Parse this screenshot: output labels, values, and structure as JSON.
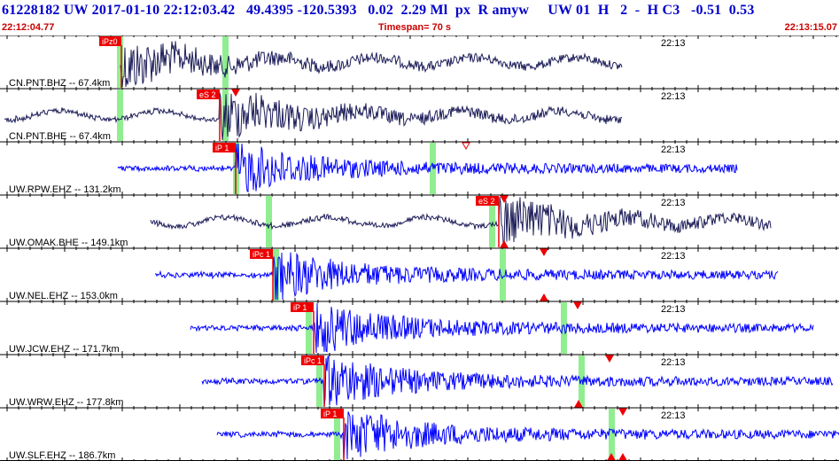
{
  "header": {
    "title": "61228182 UW 2017-01-10 22:12:03.42   49.4395 -120.5393   0.02  2.29 Ml  px  R amyw     UW 01  H   2  -  H C3   -0.51  0.53",
    "start_time": "22:12:04.77",
    "timespan": "Timespan=  70 s",
    "end_time": "22:13:15.07"
  },
  "colors": {
    "trace_dark": "#1e1e5a",
    "trace_blue": "#0000ff",
    "pick_box": "#ee0000",
    "pick_marker": "#ee0000",
    "theoretical_band": "#90ee90",
    "tick": "#000000"
  },
  "traces": [
    {
      "label": "CN.PNT.BHZ -- 67.4km",
      "time_label": "22:13",
      "color": "dark",
      "start": 136,
      "end": 702,
      "onset": 137,
      "bands": [
        135,
        254
      ],
      "picks": [
        {
          "text": "iPz0",
          "x": 137,
          "box_left": 112
        }
      ],
      "markers": []
    },
    {
      "label": "CN.PNT.BHE -- 67.4km",
      "time_label": "22:13",
      "color": "dark",
      "start": 5,
      "end": 702,
      "onset": 248,
      "bands": [
        135,
        254
      ],
      "picks": [
        {
          "text": "eS 2",
          "x": 248,
          "box_left": 222
        }
      ],
      "markers": [
        {
          "x": 266,
          "dir": "down",
          "hollow": false
        }
      ]
    },
    {
      "label": "UW.RPW.EHZ -- 131.2km",
      "time_label": "22:13",
      "color": "blue",
      "start": 133,
      "end": 832,
      "onset": 266,
      "bands": [
        266,
        488
      ],
      "picks": [
        {
          "text": "iP 1",
          "x": 266,
          "box_left": 240
        }
      ],
      "markers": [
        {
          "x": 526,
          "dir": "down",
          "hollow": true
        }
      ]
    },
    {
      "label": "UW.OMAK.BHE -- 149.1km",
      "time_label": "22:13",
      "color": "dark",
      "start": 170,
      "end": 870,
      "onset": 563,
      "bands": [
        303,
        555
      ],
      "picks": [
        {
          "text": "eS 2",
          "x": 563,
          "box_left": 537
        }
      ],
      "markers": [
        {
          "x": 569,
          "dir": "down",
          "hollow": false
        },
        {
          "x": 569,
          "dir": "up",
          "hollow": false
        }
      ]
    },
    {
      "label": "UW.NEL.EHZ -- 153.0km",
      "time_label": "22:13",
      "color": "blue",
      "start": 175,
      "end": 878,
      "onset": 308,
      "bands": [
        311,
        567
      ],
      "picks": [
        {
          "text": "iPc 1",
          "x": 308,
          "box_left": 282
        }
      ],
      "markers": [
        {
          "x": 614,
          "dir": "down",
          "hollow": false
        },
        {
          "x": 614,
          "dir": "up",
          "hollow": false
        }
      ]
    },
    {
      "label": "UW.JCW.EHZ -- 171.7km",
      "time_label": "22:13",
      "color": "blue",
      "start": 215,
      "end": 918,
      "onset": 354,
      "bands": [
        348,
        636
      ],
      "picks": [
        {
          "text": "iP 1",
          "x": 354,
          "box_left": 328
        }
      ],
      "markers": [
        {
          "x": 652,
          "dir": "down",
          "hollow": false
        }
      ]
    },
    {
      "label": "UW.WRW.EHZ -- 177.8km",
      "time_label": "22:13",
      "color": "blue",
      "start": 228,
      "end": 940,
      "onset": 366,
      "bands": [
        360,
        656
      ],
      "picks": [
        {
          "text": "iPc 1",
          "x": 366,
          "box_left": 340
        }
      ],
      "markers": [
        {
          "x": 653,
          "dir": "up",
          "hollow": false
        },
        {
          "x": 688,
          "dir": "down",
          "hollow": false
        }
      ]
    },
    {
      "label": "UW.SLF.EHZ -- 186.7km",
      "time_label": "22:13",
      "color": "blue",
      "start": 245,
      "end": 947,
      "onset": 388,
      "bands": [
        380,
        690
      ],
      "picks": [
        {
          "text": "iP 1",
          "x": 388,
          "box_left": 362
        }
      ],
      "markers": [
        {
          "x": 690,
          "dir": "up",
          "hollow": false
        },
        {
          "x": 703,
          "dir": "down",
          "hollow": false
        },
        {
          "x": 703,
          "dir": "up",
          "hollow": false
        }
      ]
    }
  ]
}
